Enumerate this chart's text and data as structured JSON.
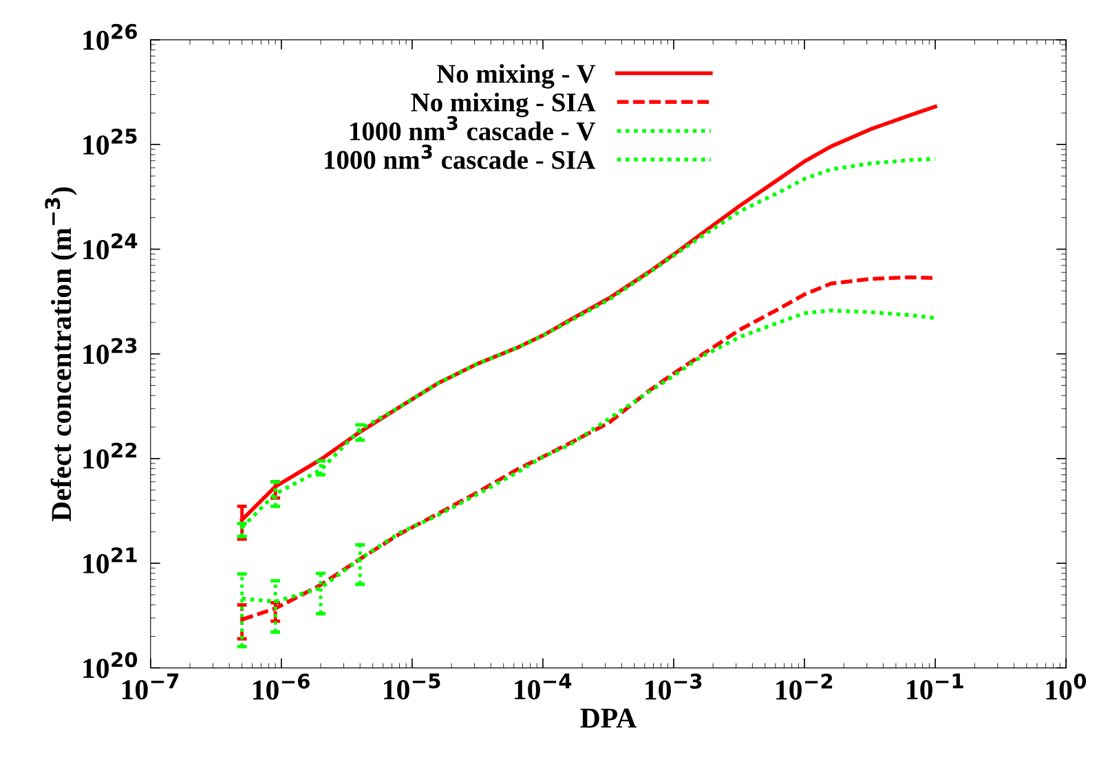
{
  "chart_data": {
    "type": "line",
    "xlabel": "DPA",
    "ylabel": "Defect concentration (m$^{−3}$)",
    "log": "xy",
    "grid": false,
    "legend": "top",
    "marker": "none",
    "xlim": [
      1e-07,
      1
    ],
    "ylim": [
      1e+20,
      1e+26
    ],
    "xticks": [
      {
        "value": 1e-07,
        "label": "10$^{−7}$"
      },
      {
        "value": 1e-06,
        "label": "10$^{−6}$"
      },
      {
        "value": 1e-05,
        "label": "10$^{−5}$"
      },
      {
        "value": 0.0001,
        "label": "10$^{−4}$"
      },
      {
        "value": 0.001,
        "label": "10$^{−3}$"
      },
      {
        "value": 0.01,
        "label": "10$^{−2}$"
      },
      {
        "value": 0.1,
        "label": "10$^{−1}$"
      },
      {
        "value": 1,
        "label": "10$^{0}$"
      }
    ],
    "yticks": [
      {
        "value": 1e+20,
        "label": "10$^{20}$"
      },
      {
        "value": 1e+21,
        "label": "10$^{21}$"
      },
      {
        "value": 1e+22,
        "label": "10$^{22}$"
      },
      {
        "value": 1e+23,
        "label": "10$^{23}$"
      },
      {
        "value": 1e+24,
        "label": "10$^{24}$"
      },
      {
        "value": 1e+25,
        "label": "10$^{25}$"
      },
      {
        "value": 1e+26,
        "label": "10$^{26}$"
      }
    ],
    "x": [
      5e-07,
      9e-07,
      2e-06,
      4e-06,
      8e-06,
      1.6e-05,
      3.2e-05,
      6.4e-05,
      0.0001,
      0.00016,
      0.00032,
      0.00064,
      0.001,
      0.0016,
      0.0032,
      0.0064,
      0.01,
      0.016,
      0.032,
      0.064,
      0.1
    ],
    "series": [
      {
        "name": "No mixing - V",
        "color": "#ff0000",
        "line_style": "solid",
        "values": [
          2.6e+21,
          5.4e+21,
          9.8e+21,
          1.8e+22,
          3.1e+22,
          5.3e+22,
          8.1e+22,
          1.15e+23,
          1.5e+23,
          2.1e+23,
          3.4e+23,
          6e+23,
          8.9e+23,
          1.38e+24,
          2.6e+24,
          4.7e+24,
          6.9e+24,
          9.6e+24,
          1.4e+25,
          1.9e+25,
          2.3e+25
        ],
        "errors": [
          [
            1.7e+21,
            3.5e+21
          ],
          [
            4.2e+21,
            6e+21
          ],
          null,
          null,
          null,
          null,
          null,
          null,
          null,
          null,
          null,
          null,
          null,
          null,
          null,
          null,
          null,
          null,
          null,
          null,
          null
        ]
      },
      {
        "name": "No mixing - SIA",
        "color": "#ff0000",
        "line_style": "dashed",
        "values": [
          2.9e+20,
          3.7e+20,
          6.2e+20,
          1.1e+21,
          1.9e+21,
          3e+21,
          4.8e+21,
          7.9e+21,
          1.04e+22,
          1.4e+22,
          2.2e+22,
          4.4e+22,
          6.5e+22,
          9.6e+22,
          1.7e+23,
          2.7e+23,
          3.7e+23,
          4.7e+23,
          5.2e+23,
          5.4e+23,
          5.3e+23
        ],
        "errors": [
          [
            1.9e+20,
            4e+20
          ],
          [
            2.8e+20,
            4.2e+20
          ],
          null,
          null,
          null,
          null,
          null,
          null,
          null,
          null,
          null,
          null,
          null,
          null,
          null,
          null,
          null,
          null,
          null,
          null,
          null
        ]
      },
      {
        "name": "1000 nm$^{3}$ cascade - V",
        "color": "#00ff00",
        "line_style": "dotted",
        "values": [
          2.2e+21,
          4.6e+21,
          7.8e+21,
          1.9e+22,
          3.1e+22,
          5.3e+22,
          8.1e+22,
          1.15e+23,
          1.5e+23,
          2.05e+23,
          3.3e+23,
          5.9e+23,
          8.7e+23,
          1.3e+24,
          2.3e+24,
          3.5e+24,
          4.7e+24,
          5.8e+24,
          6.6e+24,
          7.1e+24,
          7.3e+24
        ],
        "errors": [
          [
            1.8e+21,
            2.4e+21
          ],
          [
            3.5e+21,
            6e+21
          ],
          [
            7e+21,
            9.5e+21
          ],
          [
            1.5e+22,
            2.1e+22
          ],
          null,
          null,
          null,
          null,
          null,
          null,
          null,
          null,
          null,
          null,
          null,
          null,
          null,
          null,
          null,
          null,
          null
        ]
      },
      {
        "name": "1000 nm$^{3}$ cascade - SIA",
        "color": "#00ff00",
        "line_style": "dotted",
        "values": [
          4.6e+20,
          4.3e+20,
          5.8e+20,
          1.1e+21,
          1.95e+21,
          2.9e+21,
          4.6e+21,
          7.4e+21,
          1.04e+22,
          1.35e+22,
          2.4e+22,
          4.3e+22,
          6.2e+22,
          9.3e+22,
          1.45e+23,
          2e+23,
          2.45e+23,
          2.6e+23,
          2.5e+23,
          2.35e+23,
          2.2e+23
        ],
        "errors": [
          [
            1.6e+20,
            7.9e+20
          ],
          [
            2.2e+20,
            6.8e+20
          ],
          [
            3.3e+20,
            8e+20
          ],
          [
            6.3e+20,
            1.5e+21
          ],
          null,
          null,
          null,
          null,
          null,
          null,
          null,
          null,
          null,
          null,
          null,
          null,
          null,
          null,
          null,
          null,
          null
        ]
      }
    ]
  }
}
